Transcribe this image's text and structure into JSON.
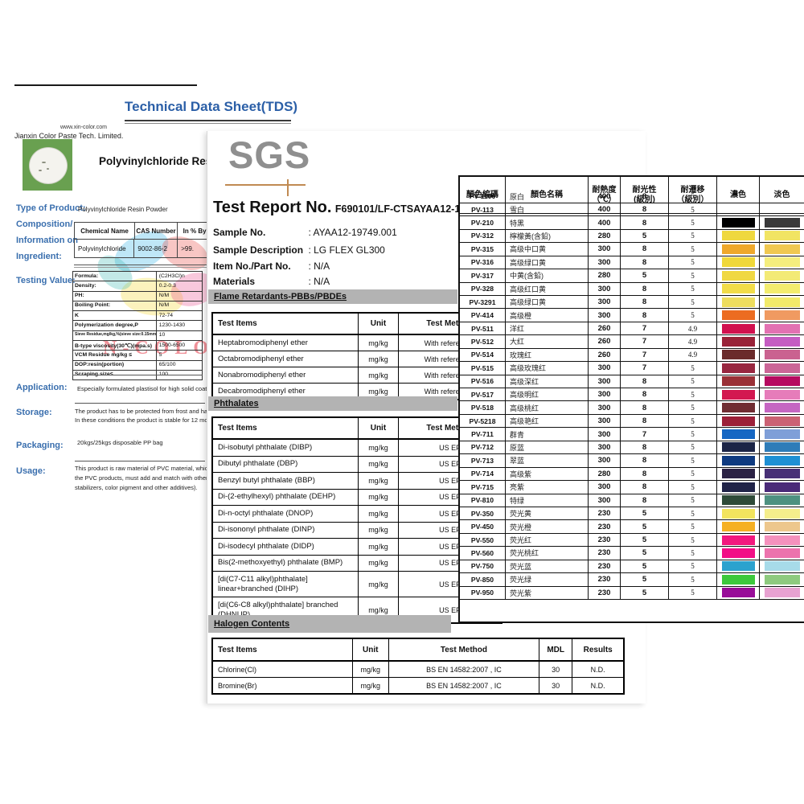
{
  "tds": {
    "title": "Technical Data Sheet(TDS)",
    "website": "www.xin-color.com",
    "company": "Jianxin Color Paste Tech. Limited.",
    "product_heading": "Polyvinylchloride Resin",
    "watermark_text": "N-COLOR",
    "labels": {
      "type_of_product": "Type of Product:",
      "composition_1": "Composition/",
      "composition_2": "Information on",
      "composition_3": "Ingredient:",
      "testing_value": "Testing Value:",
      "application": "Application:",
      "storage": "Storage:",
      "packaging": "Packaging:",
      "usage": "Usage:"
    },
    "type_of_product_value": "Polyvinylchloride Resin Powder",
    "composition_table": {
      "headers": [
        "Chemical Name",
        "CAS Number",
        "In % By W"
      ],
      "row": [
        "Polyvinylchloride",
        "9002-86-2",
        ">99."
      ]
    },
    "testing_table": {
      "rows": [
        [
          "Formula:",
          "(C2H3Cl)n"
        ],
        [
          "Density:",
          "0.2-0.3"
        ],
        [
          "PH:",
          "N/M"
        ],
        [
          "Boiling Point:",
          "N/M"
        ],
        [
          "K",
          "72-74"
        ],
        [
          "Polymerization degree,P",
          "1230-1430"
        ],
        [
          "Sieve Residue,mg/kg,%(sieve size:0.15mm)",
          "10"
        ],
        [
          "B-type viscosity(30℃)(mpa.s)",
          "1500-6500"
        ],
        [
          "VCM Residue mg/kg ≤",
          "5"
        ],
        [
          "DOP:resin(portion)",
          "65/100"
        ],
        [
          "Scraping size≤",
          "100"
        ]
      ]
    },
    "application_text": "Especially formulated plastisol for high solid coatings, synth",
    "storage_lines": [
      "The product has to be protected from frost and has to be sto",
      "In these conditions the product is stable for 12 months."
    ],
    "packaging_text": "20kgs/25kgs disposable PP bag",
    "usage_lines": [
      "This product is raw material of PVC material, which is pow",
      "the PVC products, must add and match with other m",
      "stabilizers, color pigment and other additives)."
    ]
  },
  "sgs": {
    "logo_text": "SGS",
    "report_title": "Test Report No.",
    "report_number": "F690101/LF-CTSAYAA12-19749",
    "fields": [
      {
        "label": "Sample No.",
        "value": ": AYAA12-19749.001"
      },
      {
        "label": "Sample Description",
        "value": ": LG FLEX GL300"
      },
      {
        "label": "Item No./Part No.",
        "value": ": N/A"
      },
      {
        "label": "Materials",
        "value": ": N/A"
      }
    ],
    "flame": {
      "title": "Flame Retardants-PBBs/PBDEs",
      "headers": [
        "Test Items",
        "Unit",
        "Test Method"
      ],
      "rows": [
        [
          "Heptabromodiphenyl ether",
          "mg/kg",
          "With reference t"
        ],
        [
          "Octabromodiphenyl ether",
          "mg/kg",
          "With reference t"
        ],
        [
          "Nonabromodiphenyl ether",
          "mg/kg",
          "With reference t"
        ],
        [
          "Decabromodiphenyl ether",
          "mg/kg",
          "With reference t"
        ]
      ]
    },
    "phthalates": {
      "title": "Phthalates",
      "headers": [
        "Test Items",
        "Unit",
        "Test Method"
      ],
      "rows": [
        [
          "Di-isobutyl phthalate (DIBP)",
          "mg/kg",
          "US EF"
        ],
        [
          "Dibutyl phthalate (DBP)",
          "mg/kg",
          "US EF"
        ],
        [
          "Benzyl butyl phthalate (BBP)",
          "mg/kg",
          "US EF"
        ],
        [
          "Di-(2-ethylhexyl) phthalate (DEHP)",
          "mg/kg",
          "US EF"
        ],
        [
          "Di-n-octyl phthalate (DNOP)",
          "mg/kg",
          "US EF"
        ],
        [
          "Di-isononyl phthalate (DINP)",
          "mg/kg",
          "US EF"
        ],
        [
          "Di-isodecyl phthalate (DIDP)",
          "mg/kg",
          "US EF"
        ],
        [
          "Bis(2-methoxyethyl) phthalate (BMP)",
          "mg/kg",
          "US EF"
        ],
        [
          "[di(C7-C11 alkyl)phthalate]\nlinear+branched (DIHP)",
          "mg/kg",
          "US EF"
        ],
        [
          "[di(C6-C8 alkyl)phthalate] branched\n(DHNUP)",
          "mg/kg",
          "US EF"
        ]
      ]
    },
    "halogen": {
      "title": "Halogen Contents",
      "headers": [
        "Test Items",
        "Unit",
        "Test Method",
        "MDL",
        "Results"
      ],
      "rows": [
        [
          "Chlorine(Cl)",
          "mg/kg",
          "BS EN 14582:2007 , IC",
          "30",
          "N.D."
        ],
        [
          "Bromine(Br)",
          "mg/kg",
          "BS EN 14582:2007 , IC",
          "30",
          "N.D."
        ]
      ]
    }
  },
  "color_chart": {
    "headers": [
      "顏色編碼",
      "顏色名稱",
      "耐熱度\n（℃）",
      "耐光性\n(級別)",
      "耐遷移\n（級別）",
      "濃色",
      "淡色"
    ],
    "rows": [
      {
        "code": "PV-1100",
        "name": "原白",
        "heat": "400",
        "light": "8",
        "migration": "5",
        "dark": null,
        "pale": null
      },
      {
        "code": "PV-113",
        "name": "雪白",
        "heat": "400",
        "light": "8",
        "migration": "5",
        "dark": null,
        "pale": null
      },
      {
        "code": "PV-210",
        "name": "特黑",
        "heat": "400",
        "light": "8",
        "migration": "5",
        "dark": "#000000",
        "pale": "#3a3a3a"
      },
      {
        "code": "PV-312",
        "name": "檸檬黃(含鉛)",
        "heat": "280",
        "light": "5",
        "migration": "5",
        "dark": "#efd83e",
        "pale": "#f1e463"
      },
      {
        "code": "PV-315",
        "name": "高级中口黄",
        "heat": "300",
        "light": "8",
        "migration": "5",
        "dark": "#efa82b",
        "pale": "#f0c851"
      },
      {
        "code": "PV-316",
        "name": "高级绿口黄",
        "heat": "300",
        "light": "8",
        "migration": "5",
        "dark": "#f0d83a",
        "pale": "#f5ee7e"
      },
      {
        "code": "PV-317",
        "name": "中黄(含鉛)",
        "heat": "280",
        "light": "5",
        "migration": "5",
        "dark": "#f0d842",
        "pale": "#f3ea76"
      },
      {
        "code": "PV-328",
        "name": "高级红口黄",
        "heat": "300",
        "light": "8",
        "migration": "5",
        "dark": "#f2dc48",
        "pale": "#f3ec6e"
      },
      {
        "code": "PV-3291",
        "name": "高级绿口黄",
        "heat": "300",
        "light": "8",
        "migration": "5",
        "dark": "#eedd5e",
        "pale": "#f2ea6a"
      },
      {
        "code": "PV-414",
        "name": "高级橙",
        "heat": "300",
        "light": "8",
        "migration": "5",
        "dark": "#ec6c21",
        "pale": "#f09a61"
      },
      {
        "code": "PV-511",
        "name": "洋红",
        "heat": "260",
        "light": "7",
        "migration": "4.9",
        "dark": "#d1104e",
        "pale": "#e271b2"
      },
      {
        "code": "PV-512",
        "name": "大红",
        "heat": "260",
        "light": "7",
        "migration": "4.9",
        "dark": "#992238",
        "pale": "#c55cc2"
      },
      {
        "code": "PV-514",
        "name": "玫瑰红",
        "heat": "260",
        "light": "7",
        "migration": "4.9",
        "dark": "#6b2b2b",
        "pale": "#ca6290"
      },
      {
        "code": "PV-515",
        "name": "高级玫瑰红",
        "heat": "300",
        "light": "7",
        "migration": "5",
        "dark": "#982740",
        "pale": "#cb6697"
      },
      {
        "code": "PV-516",
        "name": "高级深红",
        "heat": "300",
        "light": "8",
        "migration": "5",
        "dark": "#9a3036",
        "pale": "#b60a60"
      },
      {
        "code": "PV-517",
        "name": "高级明红",
        "heat": "300",
        "light": "8",
        "migration": "5",
        "dark": "#d31850",
        "pale": "#e67cba"
      },
      {
        "code": "PV-518",
        "name": "高级桃红",
        "heat": "300",
        "light": "8",
        "migration": "5",
        "dark": "#702c32",
        "pale": "#c566c2"
      },
      {
        "code": "PV-5218",
        "name": "高级艳红",
        "heat": "300",
        "light": "8",
        "migration": "5",
        "dark": "#9c2038",
        "pale": "#cb6274"
      },
      {
        "code": "PV-711",
        "name": "群青",
        "heat": "300",
        "light": "7",
        "migration": "5",
        "dark": "#1667c3",
        "pale": "#7f9fd8"
      },
      {
        "code": "PV-712",
        "name": "原蓝",
        "heat": "300",
        "light": "8",
        "migration": "5",
        "dark": "#1b2446",
        "pale": "#2e7cb8"
      },
      {
        "code": "PV-713",
        "name": "翠蓝",
        "heat": "300",
        "light": "8",
        "migration": "5",
        "dark": "#0e3a80",
        "pale": "#1e90d4"
      },
      {
        "code": "PV-714",
        "name": "高级紫",
        "heat": "280",
        "light": "8",
        "migration": "5",
        "dark": "#2a2144",
        "pale": "#473076"
      },
      {
        "code": "PV-715",
        "name": "亮紫",
        "heat": "300",
        "light": "8",
        "migration": "5",
        "dark": "#202348",
        "pale": "#4a2a78"
      },
      {
        "code": "PV-810",
        "name": "特绿",
        "heat": "300",
        "light": "8",
        "migration": "5",
        "dark": "#2e4a38",
        "pale": "#4e9180"
      },
      {
        "code": "PV-350",
        "name": "荧光黄",
        "heat": "230",
        "light": "5",
        "migration": "5",
        "dark": "#f2e45e",
        "pale": "#f5ee8c"
      },
      {
        "code": "PV-450",
        "name": "荧光橙",
        "heat": "230",
        "light": "5",
        "migration": "5",
        "dark": "#f5b023",
        "pale": "#edc78d"
      },
      {
        "code": "PV-550",
        "name": "荧光红",
        "heat": "230",
        "light": "5",
        "migration": "5",
        "dark": "#f2187e",
        "pale": "#f591bd"
      },
      {
        "code": "PV-560",
        "name": "荧光桃红",
        "heat": "230",
        "light": "5",
        "migration": "5",
        "dark": "#f20f86",
        "pale": "#ec73ad"
      },
      {
        "code": "PV-750",
        "name": "荧光蓝",
        "heat": "230",
        "light": "5",
        "migration": "5",
        "dark": "#2ba2ce",
        "pale": "#a7dbe9"
      },
      {
        "code": "PV-850",
        "name": "荧光绿",
        "heat": "230",
        "light": "5",
        "migration": "5",
        "dark": "#3cc83c",
        "pale": "#8eca7f"
      },
      {
        "code": "PV-950",
        "name": "荧光紫",
        "heat": "230",
        "light": "5",
        "migration": "5",
        "dark": "#980d98",
        "pale": "#e7a2d1"
      }
    ]
  }
}
